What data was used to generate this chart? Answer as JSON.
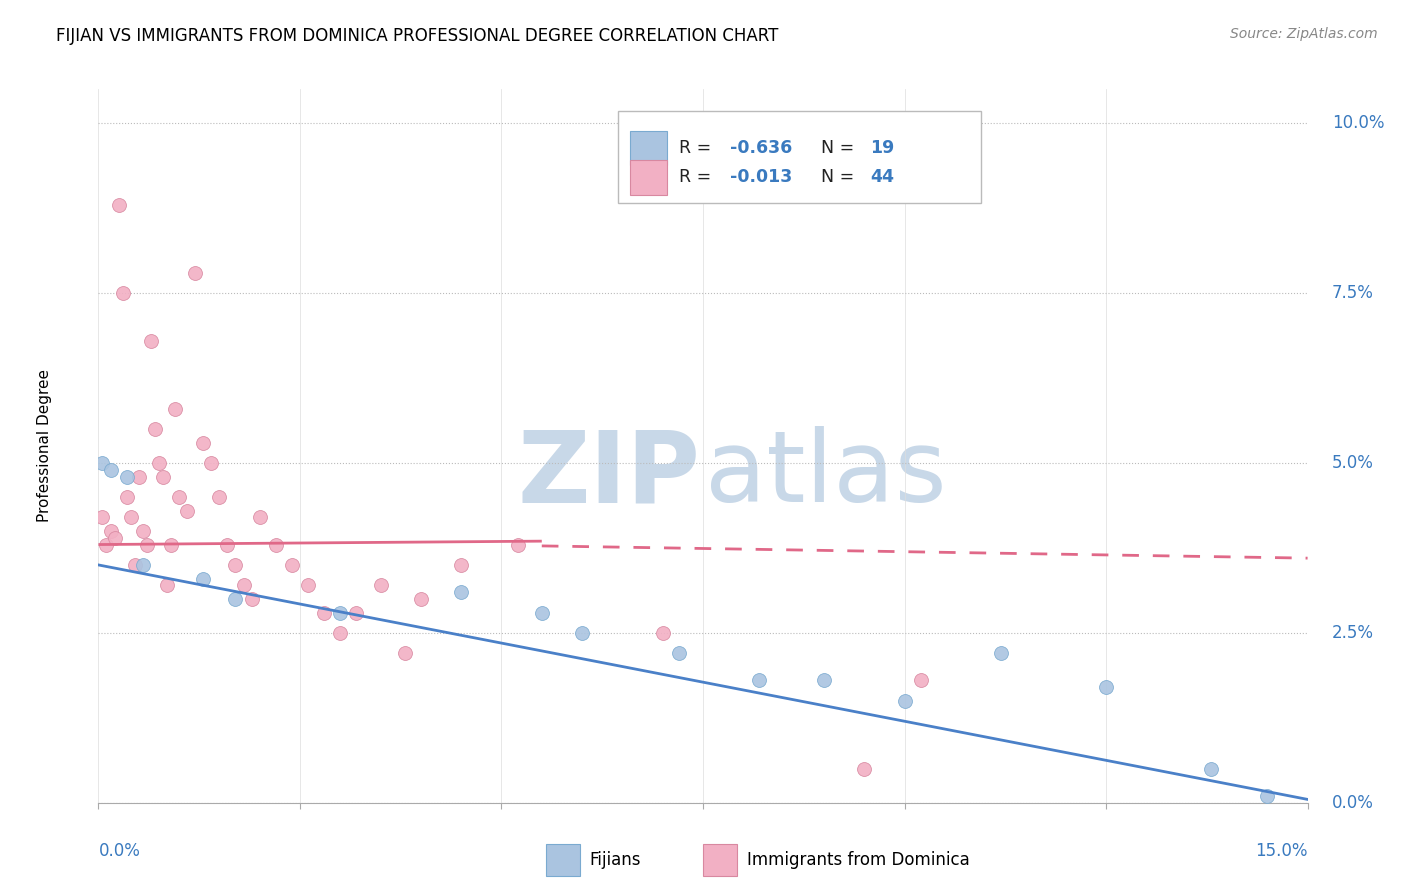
{
  "title": "FIJIAN VS IMMIGRANTS FROM DOMINICA PROFESSIONAL DEGREE CORRELATION CHART",
  "source": "Source: ZipAtlas.com",
  "ylabel": "Professional Degree",
  "fijian_color": "#aac4e0",
  "fijian_edge": "#7aaad0",
  "dominica_color": "#f2b0c4",
  "dominica_edge": "#d888a0",
  "trendline_blue": "#4a80c8",
  "trendline_pink": "#e06888",
  "watermark_color": "#c8d8e8",
  "blue_label_color": "#3a7abf",
  "fijians_x": [
    0.05,
    0.15,
    0.35,
    0.55,
    1.3,
    1.7,
    3.0,
    4.5,
    5.5,
    6.0,
    7.2,
    8.2,
    9.0,
    10.0,
    11.2,
    12.5,
    13.8,
    14.5
  ],
  "fijians_y": [
    5.0,
    4.9,
    4.8,
    3.5,
    3.3,
    3.0,
    2.8,
    3.1,
    2.8,
    2.5,
    2.2,
    1.8,
    1.8,
    1.5,
    2.2,
    1.7,
    0.5,
    0.1
  ],
  "dominica_x": [
    0.05,
    0.1,
    0.15,
    0.2,
    0.25,
    0.3,
    0.35,
    0.4,
    0.45,
    0.5,
    0.55,
    0.6,
    0.65,
    0.7,
    0.75,
    0.8,
    0.85,
    0.9,
    0.95,
    1.0,
    1.1,
    1.2,
    1.3,
    1.4,
    1.5,
    1.6,
    1.7,
    1.8,
    1.9,
    2.0,
    2.2,
    2.4,
    2.6,
    2.8,
    3.0,
    3.2,
    3.5,
    3.8,
    4.0,
    4.5,
    5.2,
    7.0,
    9.5,
    10.2
  ],
  "dominica_y": [
    4.2,
    3.8,
    4.0,
    3.9,
    8.8,
    7.5,
    4.5,
    4.2,
    3.5,
    4.8,
    4.0,
    3.8,
    6.8,
    5.5,
    5.0,
    4.8,
    3.2,
    3.8,
    5.8,
    4.5,
    4.3,
    7.8,
    5.3,
    5.0,
    4.5,
    3.8,
    3.5,
    3.2,
    3.0,
    4.2,
    3.8,
    3.5,
    3.2,
    2.8,
    2.5,
    2.8,
    3.2,
    2.2,
    3.0,
    3.5,
    3.8,
    2.5,
    0.5,
    1.8
  ],
  "blue_trend_x0": 0,
  "blue_trend_y0": 3.5,
  "blue_trend_x1": 15,
  "blue_trend_y1": 0.05,
  "pink_trend_x0": 0,
  "pink_trend_y0": 3.8,
  "pink_trend_x1": 5.5,
  "pink_trend_y1": 3.85,
  "pink_dash_x0": 5.5,
  "pink_dash_y0": 3.78,
  "pink_dash_x1": 15,
  "pink_dash_y1": 3.6,
  "xlim": [
    0,
    15
  ],
  "ylim": [
    0,
    10.5
  ],
  "xticks": [
    0,
    2.5,
    5.0,
    7.5,
    10.0,
    12.5,
    15.0
  ],
  "yticks": [
    0,
    2.5,
    5.0,
    7.5,
    10.0
  ]
}
